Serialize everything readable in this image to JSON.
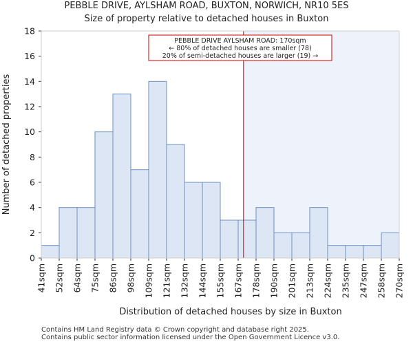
{
  "chart_data": {
    "type": "bar",
    "title_lines": [
      "PEBBLE DRIVE, AYLSHAM ROAD, BUXTON, NORWICH, NR10 5ES",
      "Size of property relative to detached houses in Buxton"
    ],
    "xlabel": "Distribution of detached houses by size in Buxton",
    "ylabel": "Number of detached properties",
    "ylim": [
      0,
      18
    ],
    "yticks": [
      0,
      2,
      4,
      6,
      8,
      10,
      12,
      14,
      16,
      18
    ],
    "bin_edges": [
      "41sqm",
      "52sqm",
      "64sqm",
      "75sqm",
      "86sqm",
      "98sqm",
      "109sqm",
      "121sqm",
      "132sqm",
      "144sqm",
      "155sqm",
      "167sqm",
      "178sqm",
      "190sqm",
      "201sqm",
      "213sqm",
      "224sqm",
      "235sqm",
      "247sqm",
      "258sqm",
      "270sqm"
    ],
    "values": [
      1,
      4,
      4,
      10,
      13,
      7,
      14,
      9,
      6,
      6,
      3,
      3,
      4,
      2,
      2,
      4,
      1,
      1,
      1,
      2
    ],
    "marker": {
      "bin_position": 11.3,
      "label_lines": [
        "PEBBLE DRIVE AYLSHAM ROAD: 170sqm",
        "← 80% of detached houses are smaller (78)",
        "20% of semi-detached houses are larger (19) →"
      ]
    },
    "colors": {
      "bar_fill": "#dce6f4",
      "bar_stroke": "#6f8fc4",
      "highlight_fill": "#eef2fa",
      "marker": "#cc0000"
    }
  },
  "footer": {
    "line1": "Contains HM Land Registry data © Crown copyright and database right 2025.",
    "line2": "Contains public sector information licensed under the Open Government Licence v3.0."
  }
}
